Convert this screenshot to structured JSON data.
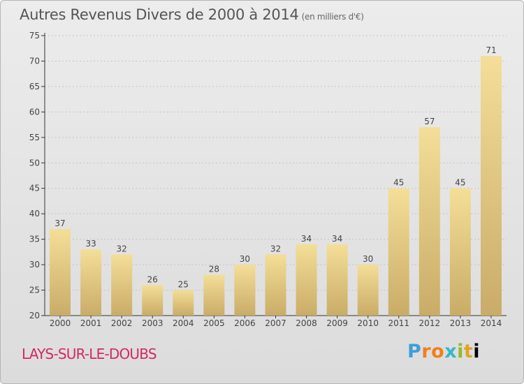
{
  "title": "Autres Revenus Divers de 2000 à 2014",
  "subtitle": "(en milliers d'€)",
  "commune": "LAYS-SUR-LE-DOUBS",
  "logo": {
    "letters": [
      "P",
      "r",
      "o",
      "x",
      "i",
      "t",
      "i"
    ]
  },
  "colors": {
    "bar_light": "#f4de98",
    "bar_dark": "#c9ac67",
    "commune_text": "#d22a5f",
    "axis": "#333333"
  },
  "chart_data": {
    "type": "bar",
    "categories": [
      "2000",
      "2001",
      "2002",
      "2003",
      "2004",
      "2005",
      "2006",
      "2007",
      "2008",
      "2009",
      "2010",
      "2011",
      "2012",
      "2013",
      "2014"
    ],
    "values": [
      37,
      33,
      32,
      26,
      25,
      28,
      30,
      32,
      34,
      34,
      30,
      45,
      57,
      45,
      71
    ],
    "ylim": [
      20,
      75
    ],
    "yticks": [
      20,
      25,
      30,
      35,
      40,
      45,
      50,
      55,
      60,
      65,
      70,
      75
    ],
    "grid": true,
    "xlabel": "",
    "ylabel": ""
  }
}
